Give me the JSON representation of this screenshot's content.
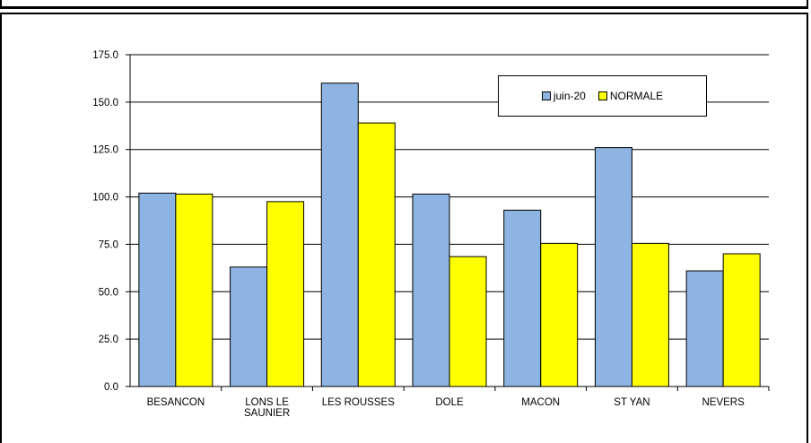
{
  "chart_data": {
    "type": "bar",
    "categories": [
      "BESANCON",
      "LONS LE\nSAUNIER",
      "LES ROUSSES",
      "DOLE",
      "MACON",
      "ST YAN",
      "NEVERS"
    ],
    "series": [
      {
        "name": "juin-20",
        "color": "#8EB4E3",
        "values": [
          102.0,
          63.0,
          160.0,
          101.5,
          93.0,
          126.0,
          61.0
        ]
      },
      {
        "name": "NORMALE",
        "color": "#FFFF00",
        "values": [
          101.5,
          97.5,
          139.0,
          68.5,
          75.5,
          75.5,
          70.0
        ]
      }
    ],
    "ylim": [
      0,
      175
    ],
    "yticks": [
      "0.0",
      "25.0",
      "50.0",
      "75.0",
      "100.0",
      "125.0",
      "150.0",
      "175.0"
    ],
    "grid": true,
    "legend_position": "top-right"
  }
}
